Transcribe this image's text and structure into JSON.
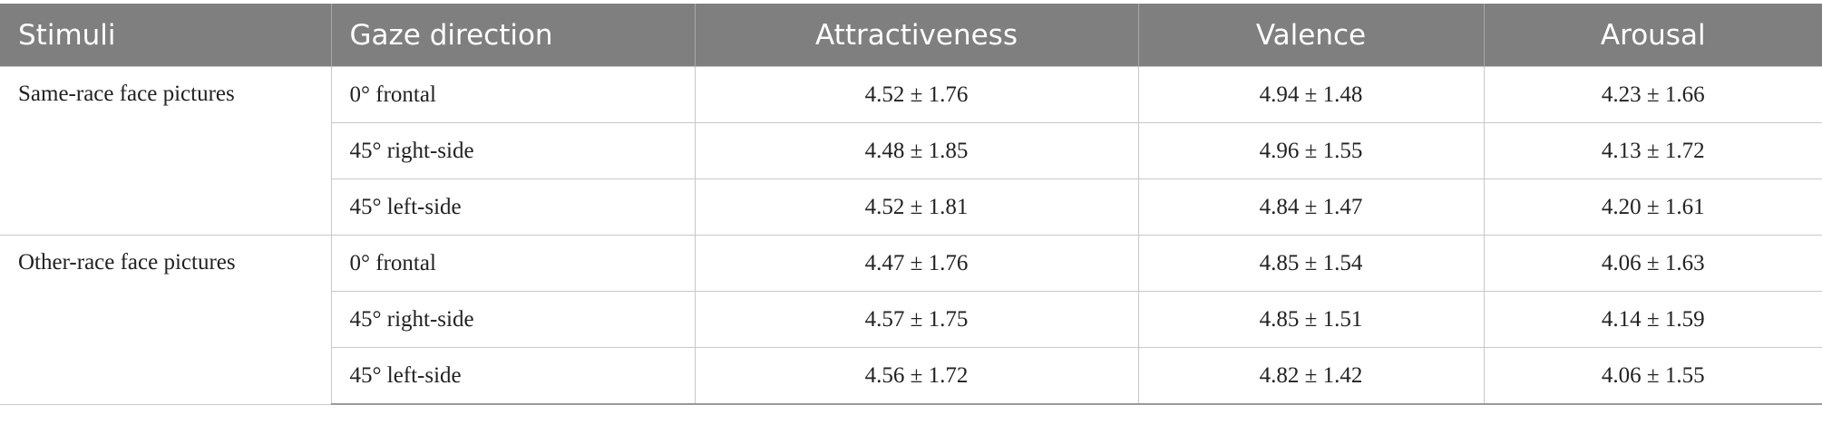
{
  "table": {
    "header": [
      "Stimuli",
      "Gaze direction",
      "Attractiveness",
      "Valence",
      "Arousal"
    ],
    "groups": [
      {
        "stimuli": "Same-race face pictures",
        "rows": [
          [
            "0° frontal",
            "4.52 ± 1.76",
            "4.94 ± 1.48",
            "4.23 ± 1.66"
          ],
          [
            "45° right-side",
            "4.48 ± 1.85",
            "4.96 ± 1.55",
            "4.13 ± 1.72"
          ],
          [
            "45° left-side",
            "4.52 ± 1.81",
            "4.84 ± 1.47",
            "4.20 ± 1.61"
          ]
        ]
      },
      {
        "stimuli": "Other-race face pictures",
        "rows": [
          [
            "0° frontal",
            "4.47 ± 1.76",
            "4.85 ± 1.54",
            "4.06 ± 1.63"
          ],
          [
            "45° right-side",
            "4.57 ± 1.75",
            "4.85 ± 1.51",
            "4.14 ± 1.59"
          ],
          [
            "45° left-side",
            "4.56 ± 1.72",
            "4.82 ± 1.42",
            "4.06 ± 1.55"
          ]
        ]
      }
    ]
  }
}
